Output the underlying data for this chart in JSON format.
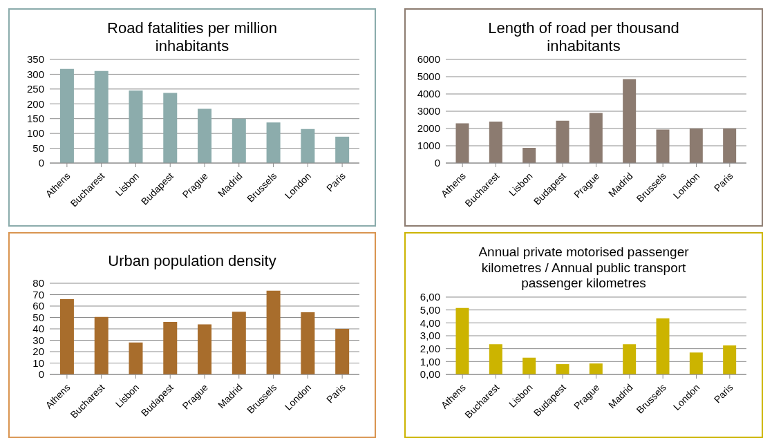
{
  "chart_data": [
    {
      "type": "bar",
      "title": "Road fatalities per million inhabitants",
      "categories": [
        "Athens",
        "Bucharest",
        "Lisbon",
        "Budapest",
        "Prague",
        "Madrid",
        "Brussels",
        "London",
        "Paris"
      ],
      "values": [
        318,
        311,
        245,
        237,
        183,
        150,
        137,
        115,
        89
      ],
      "color": "#8cacac",
      "ylim": [
        0,
        350
      ],
      "yticks": [
        0,
        50,
        100,
        150,
        200,
        250,
        300,
        350
      ],
      "grid": "y",
      "legend": false
    },
    {
      "type": "bar",
      "title": "Length of road per thousand inhabitants",
      "categories": [
        "Athens",
        "Bucharest",
        "Lisbon",
        "Budapest",
        "Prague",
        "Madrid",
        "Brussels",
        "London",
        "Paris"
      ],
      "values": [
        2300,
        2400,
        880,
        2450,
        2900,
        4860,
        1940,
        2000,
        2000
      ],
      "color": "#8c7b70",
      "ylim": [
        0,
        6000
      ],
      "yticks": [
        0,
        1000,
        2000,
        3000,
        4000,
        5000,
        6000
      ],
      "grid": "y",
      "legend": false
    },
    {
      "type": "bar",
      "title": "Urban population density",
      "categories": [
        "Athens",
        "Bucharest",
        "Lisbon",
        "Budapest",
        "Prague",
        "Madrid",
        "Brussels",
        "London",
        "Paris"
      ],
      "values": [
        66,
        50.5,
        28,
        46,
        44,
        55,
        73.5,
        54.5,
        40
      ],
      "color": "#a86d2c",
      "ylim": [
        0,
        80
      ],
      "yticks": [
        0,
        10,
        20,
        30,
        40,
        50,
        60,
        70,
        80
      ],
      "grid": "y",
      "legend": false
    },
    {
      "type": "bar",
      "title": "Annual private motorised passenger kilometres / Annual public transport passenger kilometres",
      "categories": [
        "Athens",
        "Bucharest",
        "Lisbon",
        "Budapest",
        "Prague",
        "Madrid",
        "Brussels",
        "London",
        "Paris"
      ],
      "values": [
        5.15,
        2.35,
        1.3,
        0.8,
        0.85,
        2.35,
        4.35,
        1.7,
        2.25
      ],
      "color": "#ccb400",
      "ylim": [
        0,
        6
      ],
      "yticks": [
        {
          "value": 0,
          "label": "0,00"
        },
        {
          "value": 1,
          "label": "1,00"
        },
        {
          "value": 2,
          "label": "2,00"
        },
        {
          "value": 3,
          "label": "3,00"
        },
        {
          "value": 4,
          "label": "4,00"
        },
        {
          "value": 5,
          "label": "5,00"
        },
        {
          "value": 6,
          "label": "6,00"
        }
      ],
      "grid": "y",
      "legend": false
    }
  ]
}
